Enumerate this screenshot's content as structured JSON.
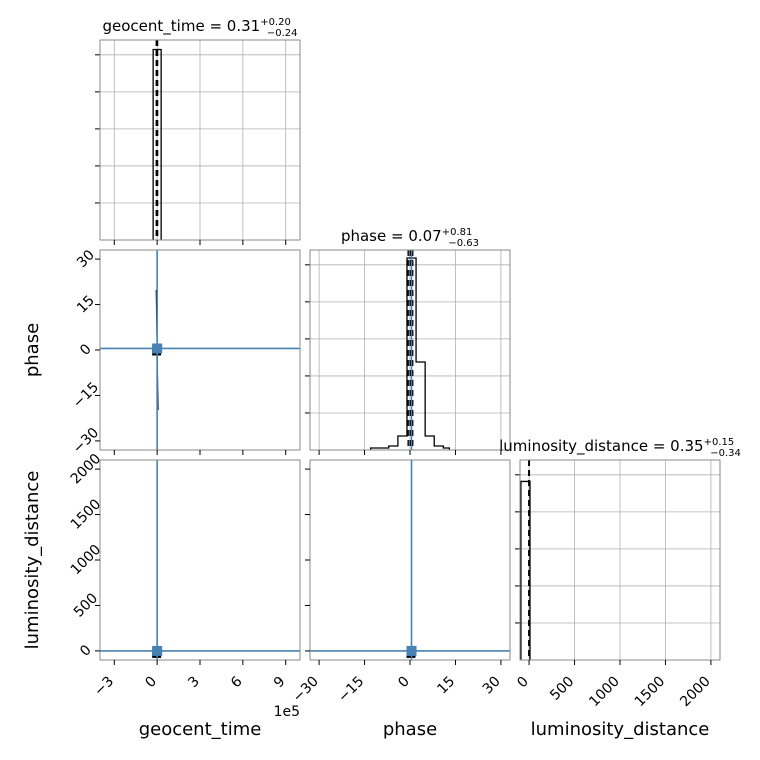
{
  "chart_data": {
    "type": "corner",
    "parameters": [
      {
        "key": "geocent_time",
        "label": "geocent_time",
        "median": "0.31",
        "plus": "+0.20",
        "minus": "−0.24",
        "range": [
          -400000,
          1000000
        ],
        "ticks": [
          -300000,
          0,
          300000,
          600000,
          900000
        ],
        "tick_labels": [
          "−3",
          "0",
          "3",
          "6",
          "9"
        ],
        "offset_label": "1e5",
        "truth": 0
      },
      {
        "key": "phase",
        "label": "phase",
        "median": "0.07",
        "plus": "+0.81",
        "minus": "−0.63",
        "range": [
          -33,
          33
        ],
        "ticks": [
          -30,
          -15,
          0,
          15,
          30
        ],
        "tick_labels": [
          "−30",
          "−15",
          "0",
          "15",
          "30"
        ],
        "truth": 0.5
      },
      {
        "key": "luminosity_distance",
        "label": "luminosity_distance",
        "median": "0.35",
        "plus": "+0.15",
        "minus": "−0.34",
        "range": [
          -100,
          2100
        ],
        "ticks": [
          0,
          500,
          1000,
          1500,
          2000
        ],
        "tick_labels": [
          "0",
          "500",
          "1000",
          "1500",
          "2000"
        ],
        "truth": 0
      }
    ],
    "histograms": [
      {
        "param": "geocent_time",
        "edges": [
          -28000,
          28000
        ],
        "counts": [
          1.0
        ],
        "ylim": [
          0,
          1.05
        ]
      },
      {
        "param": "phase",
        "edges": [
          -13,
          -10,
          -7,
          -4,
          -1,
          2,
          5,
          8,
          11,
          13
        ],
        "counts": [
          0.01,
          0.01,
          0.02,
          0.07,
          0.96,
          0.44,
          0.07,
          0.02,
          0.01
        ],
        "ylim": [
          0,
          1.0
        ]
      },
      {
        "param": "luminosity_distance",
        "edges": [
          -90,
          10
        ],
        "counts": [
          1.0
        ],
        "ylim": [
          0,
          1.12
        ]
      }
    ],
    "quantile_lines": {
      "geocent_time": [
        -6000,
        0,
        3000
      ],
      "phase": [
        -0.6,
        0.07,
        0.9
      ],
      "luminosity_distance": [
        -3,
        0,
        3
      ]
    },
    "grid": true,
    "truth_color": "#4682b4",
    "hist_color": "#000000"
  }
}
